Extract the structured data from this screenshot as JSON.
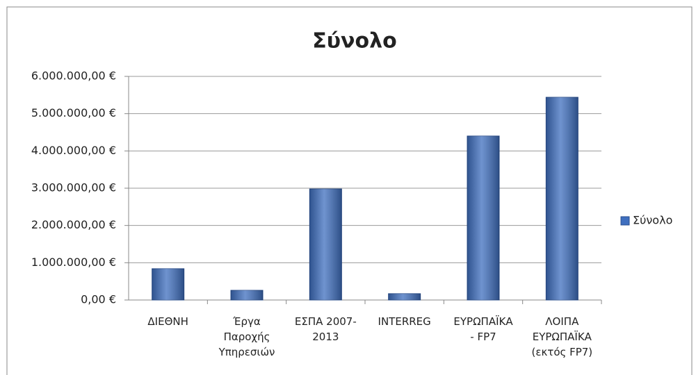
{
  "chart_data": {
    "type": "bar",
    "title": "Σύνολο",
    "categories": [
      "ΔΙΕΘΝΗ",
      "Έργα Παροχής Υπηρεσιών",
      "ΕΣΠΑ 2007-2013",
      "INTERREG",
      "ΕΥΡΩΠΑΪΚΑ - FP7",
      "ΛΟΙΠΑ ΕΥΡΩΠΑΪΚΑ (εκτός FP7)"
    ],
    "series": [
      {
        "name": "Σύνολο",
        "color": "#3f6fbf",
        "values": [
          840000,
          260000,
          2980000,
          170000,
          4400000,
          5440000
        ]
      }
    ],
    "ylim": [
      0,
      6000000
    ],
    "yticks": [
      {
        "value": 0,
        "label": "0,00 €"
      },
      {
        "value": 1000000,
        "label": "1.000.000,00 €"
      },
      {
        "value": 2000000,
        "label": "2.000.000,00 €"
      },
      {
        "value": 3000000,
        "label": "3.000.000,00 €"
      },
      {
        "value": 4000000,
        "label": "4.000.000,00 €"
      },
      {
        "value": 5000000,
        "label": "5.000.000,00 €"
      },
      {
        "value": 6000000,
        "label": "6.000.000,00 €"
      }
    ],
    "grid": true,
    "legend": "right"
  }
}
